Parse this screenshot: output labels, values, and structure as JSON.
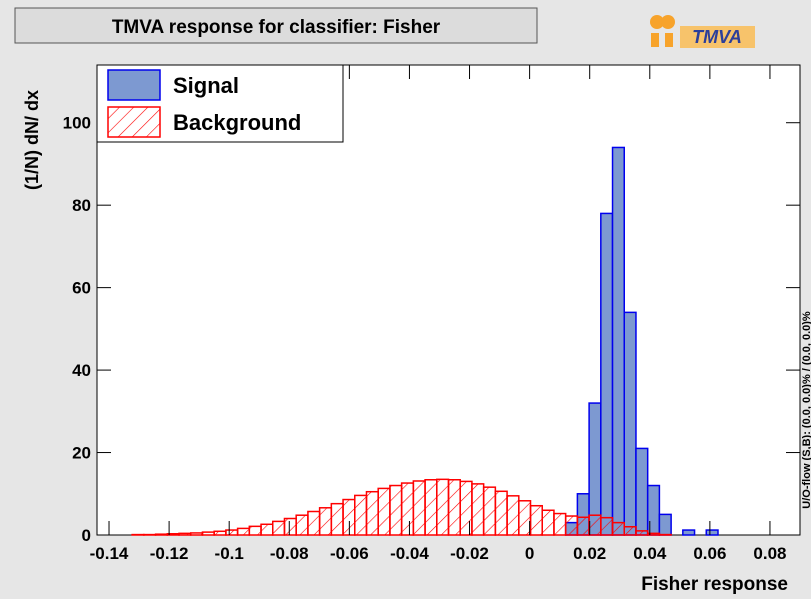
{
  "chart_data": {
    "type": "histogram",
    "title": "TMVA response for classifier: Fisher",
    "logo": "TMVA",
    "xlabel": "Fisher response",
    "ylabel": "(1/N) dN/ dx",
    "side_note": "U/O-flow (S,B): (0.0, 0.0)% / (0.0, 0.0)%",
    "bins": [
      -0.144,
      -0.1401,
      -0.1362,
      -0.1323,
      -0.1284,
      -0.1245,
      -0.1206,
      -0.1167,
      -0.1128,
      -0.1089,
      -0.105,
      -0.1011,
      -0.0972,
      -0.0933,
      -0.0894,
      -0.0855,
      -0.0816,
      -0.0777,
      -0.0738,
      -0.0699,
      -0.066,
      -0.0621,
      -0.0582,
      -0.0543,
      -0.0504,
      -0.0465,
      -0.0426,
      -0.0387,
      -0.0348,
      -0.0309,
      -0.027,
      -0.0231,
      -0.0192,
      -0.0153,
      -0.0114,
      -0.0075,
      -0.0036,
      0.0003,
      0.0042,
      0.0081,
      0.012,
      0.0159,
      0.0198,
      0.0237,
      0.0276,
      0.0315,
      0.0354,
      0.0393,
      0.0432,
      0.0471,
      0.051,
      0.0549,
      0.0588,
      0.0627,
      0.0666,
      0.0705,
      0.0744,
      0.0783,
      0.0822,
      0.0861,
      0.09
    ],
    "series": [
      {
        "name": "Signal",
        "color": "#7d99d1",
        "edge": "#0000ee",
        "hatch": false,
        "values": [
          0,
          0,
          0,
          0,
          0,
          0,
          0,
          0,
          0,
          0,
          0,
          0,
          0,
          0,
          0,
          0,
          0,
          0,
          0,
          0,
          0,
          0,
          0,
          0,
          0,
          0,
          0,
          0,
          0,
          0,
          0,
          0,
          0,
          0,
          0,
          0,
          0,
          0,
          0,
          0,
          3,
          10,
          32,
          78,
          94,
          54,
          21,
          12,
          5,
          0,
          1.2,
          0,
          1.2,
          0,
          0,
          0,
          0,
          0,
          0,
          0
        ]
      },
      {
        "name": "Background",
        "color": "#ff0000",
        "edge": "#ff0000",
        "hatch": true,
        "values": [
          0,
          0,
          0,
          0.1,
          0.1,
          0.2,
          0.3,
          0.4,
          0.5,
          0.7,
          0.9,
          1.2,
          1.6,
          2.1,
          2.6,
          3.3,
          4.0,
          4.8,
          5.7,
          6.6,
          7.6,
          8.6,
          9.6,
          10.5,
          11.3,
          12.0,
          12.6,
          13.1,
          13.4,
          13.5,
          13.4,
          13.0,
          12.4,
          11.6,
          10.6,
          9.5,
          8.3,
          7.1,
          6.0,
          5.2,
          4.6,
          4.3,
          4.8,
          4.2,
          3.0,
          2.0,
          1.0,
          0.4,
          0.1,
          0,
          0,
          0,
          0,
          0,
          0,
          0,
          0,
          0,
          0,
          0
        ]
      }
    ],
    "xlim": [
      -0.144,
      0.09
    ],
    "ylim": [
      0,
      114
    ],
    "xticks": [
      -0.14,
      -0.12,
      -0.1,
      -0.08,
      -0.06,
      -0.04,
      -0.02,
      0,
      0.02,
      0.04,
      0.06,
      0.08
    ],
    "yticks": [
      0,
      20,
      40,
      60,
      80,
      100
    ],
    "legend": "upper left"
  }
}
